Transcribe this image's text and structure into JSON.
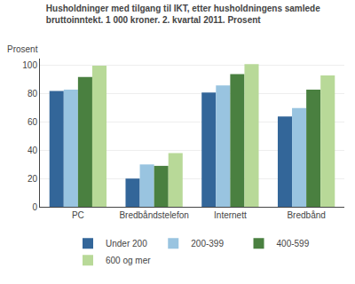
{
  "chart_data": {
    "type": "bar",
    "title": "Husholdninger med tilgang til IKT, etter husholdningens samlede\nbruttoinntekt. 1 000 kroner. 2. kvartal 2011. Prosent",
    "ylabel": "Prosent",
    "categories": [
      "PC",
      "Bredbåndstelefon",
      "Internett",
      "Bredbånd"
    ],
    "series": [
      {
        "name": "Under 200",
        "color": "#336699",
        "values": [
          82,
          20,
          81,
          64
        ]
      },
      {
        "name": "200-399",
        "color": "#99C4E0",
        "values": [
          83,
          30,
          86,
          70
        ]
      },
      {
        "name": "400-599",
        "color": "#4A8040",
        "values": [
          92,
          29,
          94,
          83
        ]
      },
      {
        "name": "600 og mer",
        "color": "#B8D998",
        "values": [
          100,
          38,
          101,
          93
        ]
      }
    ],
    "ylim": [
      0,
      105
    ],
    "yticks": [
      0,
      20,
      40,
      60,
      80,
      100
    ],
    "grid": true,
    "legend": "bottom"
  }
}
